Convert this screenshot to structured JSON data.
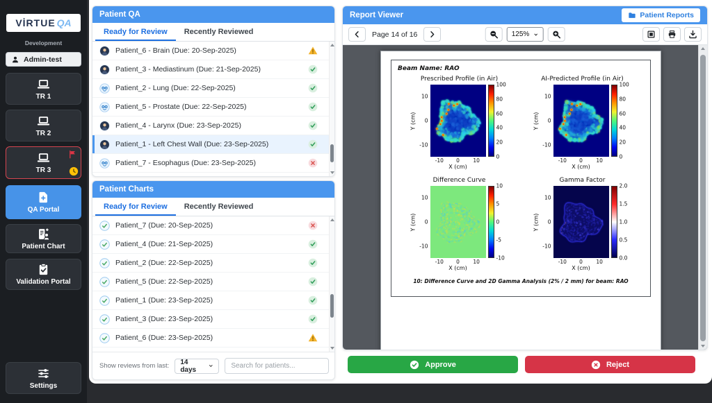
{
  "app": {
    "logo_primary": "VİRTUE",
    "logo_accent": "QA",
    "environment": "Development"
  },
  "sidebar": {
    "user": "Admin-test",
    "machines": [
      {
        "label": "TR 1"
      },
      {
        "label": "TR 2"
      },
      {
        "label": "TR 3",
        "flagged": true,
        "pending": true
      }
    ],
    "nav": [
      {
        "label": "QA Portal",
        "active": true
      },
      {
        "label": "Patient Chart",
        "active": false
      },
      {
        "label": "Validation Portal",
        "active": false
      }
    ],
    "settings_label": "Settings"
  },
  "patient_qa": {
    "title": "Patient QA",
    "tabs": [
      {
        "label": "Ready for Review",
        "active": true
      },
      {
        "label": "Recently Reviewed",
        "active": false
      }
    ],
    "items": [
      {
        "label": "Patient_6 - Brain (Due: 20-Sep-2025)",
        "avatar": "person-dark",
        "status": "warn"
      },
      {
        "label": "Patient_3 - Mediastinum (Due: 21-Sep-2025)",
        "avatar": "person-dark",
        "status": "check"
      },
      {
        "label": "Patient_2 - Lung (Due: 22-Sep-2025)",
        "avatar": "person-blue",
        "status": "check"
      },
      {
        "label": "Patient_5 - Prostate (Due: 22-Sep-2025)",
        "avatar": "person-blue",
        "status": "check"
      },
      {
        "label": "Patient_4 - Larynx (Due: 23-Sep-2025)",
        "avatar": "person-dark",
        "status": "check"
      },
      {
        "label": "Patient_1 - Left Chest Wall (Due: 23-Sep-2025)",
        "avatar": "person-dark",
        "status": "check",
        "selected": true
      },
      {
        "label": "Patient_7 - Esophagus (Due: 23-Sep-2025)",
        "avatar": "person-blue",
        "status": "x"
      }
    ]
  },
  "patient_charts": {
    "title": "Patient Charts",
    "tabs": [
      {
        "label": "Ready for Review",
        "active": true
      },
      {
        "label": "Recently Reviewed",
        "active": false
      }
    ],
    "items": [
      {
        "label": "Patient_7 (Due: 20-Sep-2025)",
        "avatar": "chart",
        "status": "x"
      },
      {
        "label": "Patient_4 (Due: 21-Sep-2025)",
        "avatar": "chart",
        "status": "check"
      },
      {
        "label": "Patient_2 (Due: 22-Sep-2025)",
        "avatar": "chart",
        "status": "check"
      },
      {
        "label": "Patient_5 (Due: 22-Sep-2025)",
        "avatar": "chart",
        "status": "check"
      },
      {
        "label": "Patient_1 (Due: 23-Sep-2025)",
        "avatar": "chart",
        "status": "check"
      },
      {
        "label": "Patient_3 (Due: 23-Sep-2025)",
        "avatar": "chart",
        "status": "check"
      },
      {
        "label": "Patient_6 (Due: 23-Sep-2025)",
        "avatar": "chart",
        "status": "warn"
      }
    ],
    "footer": {
      "filter_label": "Show reviews from last:",
      "filter_value": "14 days",
      "search_placeholder": "Search for patients..."
    }
  },
  "report_viewer": {
    "title": "Report Viewer",
    "patient_reports_label": "Patient Reports",
    "page_label": "Page 14 of 16",
    "zoom_value": "125%",
    "beam_name": "Beam Name: RAO",
    "caption": "10: Difference Curve and 2D Gamma Analysis (2% / 2 mm) for beam: RAO",
    "approve_label": "Approve",
    "reject_label": "Reject"
  },
  "colors": {
    "header_blue": "#4a96ee",
    "accent_blue": "#4793e8",
    "approve_green": "#28a745",
    "reject_red": "#d63447",
    "alert_red": "#dc3545",
    "warning_yellow": "#ffc107",
    "viewer_background": "#54585e"
  },
  "chart_data": [
    {
      "type": "heatmap",
      "title": "Prescribed Profile (in Air)",
      "xlabel": "X (cm)",
      "ylabel": "Y (cm)",
      "xlim": [
        -15,
        15
      ],
      "ylim": [
        -15,
        15
      ],
      "xticks": [
        -10,
        0,
        10
      ],
      "yticks": [
        10,
        0,
        -10
      ],
      "colormap": "jet",
      "colorbar_range": [
        0,
        100
      ],
      "colorbar_ticks": [
        "100",
        "80",
        "60",
        "40",
        "20",
        "0"
      ],
      "colorbar_colors": [
        "#7f0000",
        "#ff1e00",
        "#ff9400",
        "#f2f22e",
        "#52f77a",
        "#00d8d8",
        "#0080ff",
        "#0008f0",
        "#000080"
      ],
      "render": "dose",
      "description": "2D beam intensity map in air; irregular ~12 cm radius region, mostly 20-50% intensity (blue/cyan) with hotspots up to ~100% along the left and lower edges."
    },
    {
      "type": "heatmap",
      "title": "AI-Predicted Profile (in Air)",
      "xlabel": "X (cm)",
      "ylabel": "Y (cm)",
      "xlim": [
        -15,
        15
      ],
      "ylim": [
        -15,
        15
      ],
      "xticks": [
        -10,
        0,
        10
      ],
      "yticks": [
        10,
        0,
        -10
      ],
      "colormap": "jet",
      "colorbar_range": [
        0,
        100
      ],
      "colorbar_ticks": [
        "100",
        "80",
        "60",
        "40",
        "20",
        "0"
      ],
      "colorbar_colors": [
        "#7f0000",
        "#ff1e00",
        "#ff9400",
        "#f2f22e",
        "#52f77a",
        "#00d8d8",
        "#0080ff",
        "#0008f0",
        "#000080"
      ],
      "render": "dose",
      "description": "AI-predicted beam intensity map; visually near-identical to the prescribed profile."
    },
    {
      "type": "heatmap",
      "title": "Difference Curve",
      "xlabel": "X (cm)",
      "ylabel": "Y (cm)",
      "xlim": [
        -15,
        15
      ],
      "ylim": [
        -15,
        15
      ],
      "xticks": [
        -10,
        0,
        10
      ],
      "yticks": [
        10,
        0,
        -10
      ],
      "colormap": "jet",
      "colorbar_range": [
        -10,
        10
      ],
      "colorbar_ticks": [
        "10",
        "5",
        "0",
        "-5",
        "-10"
      ],
      "colorbar_colors": [
        "#7f0000",
        "#ff1e00",
        "#ff9400",
        "#f2f22e",
        "#52f77a",
        "#00d8d8",
        "#0080ff",
        "#0008f0",
        "#000080"
      ],
      "render": "diff",
      "description": "Prescribed minus AI-predicted dose; mostly ~0 (green) with faint ±5 speckle along structure edges."
    },
    {
      "type": "heatmap",
      "title": "Gamma Factor",
      "xlabel": "X (cm)",
      "ylabel": "Y (cm)",
      "xlim": [
        -15,
        15
      ],
      "ylim": [
        -15,
        15
      ],
      "xticks": [
        -10,
        0,
        10
      ],
      "yticks": [
        10,
        0,
        -10
      ],
      "colormap": "seismic",
      "colorbar_range": [
        0,
        2
      ],
      "colorbar_ticks": [
        "2.0",
        "1.5",
        "1.0",
        "0.5",
        "0.0"
      ],
      "colorbar_colors": [
        "#800000",
        "#ff2a2a",
        "#ffffff",
        "#2a2aff",
        "#00004c"
      ],
      "render": "gamma",
      "description": "2D gamma map (2%/2mm); values mostly below 0.5 (dark blue) with faint blue structure edges approaching 1."
    }
  ]
}
